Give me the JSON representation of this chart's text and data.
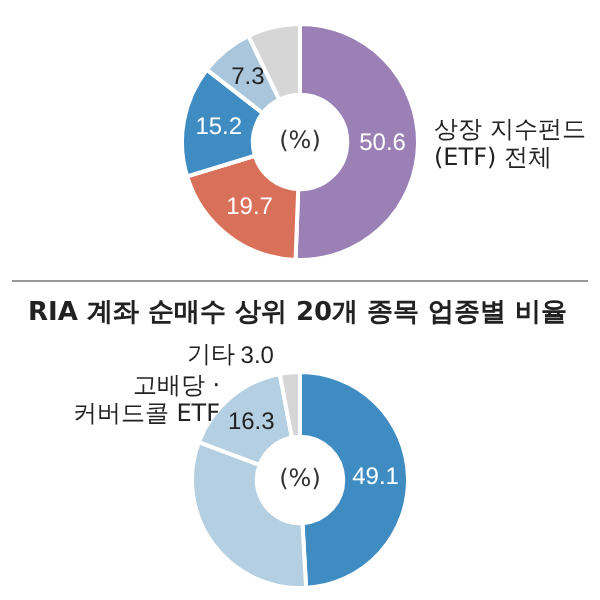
{
  "chart_data": [
    {
      "type": "donut",
      "categories": [
        "상장 지수펀드 (ETF) 전체",
        null,
        null,
        null,
        null
      ],
      "values": [
        50.6,
        19.7,
        15.2,
        7.3,
        7.2
      ],
      "colors": [
        "#9b80b6",
        "#d8705a",
        "#3f8cc3",
        "#a9c6dc",
        "#d6d6d6"
      ],
      "value_labels": [
        "50.6",
        "19.7",
        "15.2",
        "7.3",
        null
      ],
      "annotations": [
        "(%)"
      ],
      "legend": false
    },
    {
      "type": "donut",
      "title": "RIA 계좌 순매수 상위 20개 종목 업종별 비율",
      "categories": [
        null,
        null,
        "고배당 · 커버드콜 ETF",
        "기타"
      ],
      "values": [
        49.1,
        31.6,
        16.3,
        3.0
      ],
      "colors": [
        "#3f8cc3",
        "#b4cfe1",
        "#b4cfe1",
        "#d6d6d6"
      ],
      "value_labels": [
        "49.1",
        null,
        "16.3",
        "3.0"
      ],
      "annotations": [
        "(%)"
      ],
      "legend": false
    }
  ]
}
